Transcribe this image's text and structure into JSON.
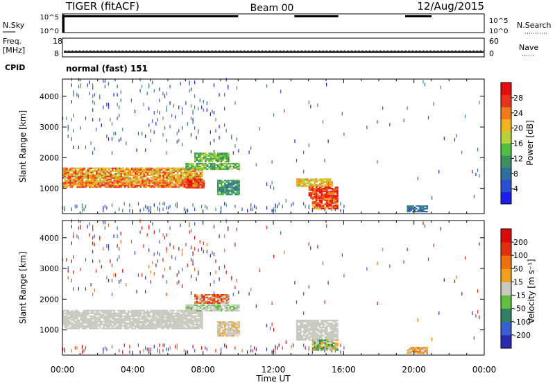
{
  "header": {
    "radar": "TIGER (fitACF)",
    "beam": "Beam 00",
    "date": "12/Aug/2015"
  },
  "status_rows": {
    "nsky_label": "N.Sky",
    "nsky_ticks": [
      "10^5",
      "10^0"
    ],
    "nsearch_label": "N.Search",
    "nsearch_ticks": [
      "10^5",
      "10^0"
    ],
    "freq_label": [
      "Freq.",
      "[MHz]"
    ],
    "freq_ticks": [
      "18",
      "8"
    ],
    "nave_label": "Nave",
    "nave_ticks": [
      "60",
      "0"
    ],
    "cpid_label": "CPID",
    "cpid_text": "normal (fast) 151"
  },
  "x_axis": {
    "label": "Time UT",
    "ticks": [
      "00:00",
      "04:00",
      "08:00",
      "12:00",
      "16:00",
      "20:00",
      "00:00"
    ]
  },
  "power_panel": {
    "y_label": "Slant Range [km]",
    "y_ticks": [
      "4000",
      "3000",
      "2000",
      "1000"
    ],
    "colorbar_label": "Power [dB]",
    "colorbar_ticks": [
      "28",
      "24",
      "20",
      "16",
      "12",
      "8",
      "4"
    ]
  },
  "velocity_panel": {
    "y_label": "Slant Range [km]",
    "y_ticks": [
      "4000",
      "3000",
      "2000",
      "1000"
    ],
    "colorbar_label": "Velocity [m s⁻¹]",
    "colorbar_ticks": [
      "200",
      "100",
      "50",
      "15",
      "-15",
      "-50",
      "-100",
      "-200"
    ]
  },
  "chart_data": {
    "type": "heatmap",
    "x_unit": "hours UT",
    "xlim": [
      0,
      24
    ],
    "ylim": [
      180,
      4560
    ],
    "power_colors": [
      "#1d1df0",
      "#2a4fd0",
      "#2f6fa0",
      "#3c8f5f",
      "#4fbf3f",
      "#b8d23a",
      "#f2b21c",
      "#f07a1a",
      "#e8321c",
      "#e60e0e"
    ],
    "velocity_colors": [
      "#2a2ab0",
      "#3a5fd0",
      "#2f7f5f",
      "#5fbf3f",
      "#c8c8c0",
      "#f2a01c",
      "#f07010",
      "#e03010",
      "#d80a0a"
    ],
    "power_regions": [
      {
        "t0": 0.0,
        "t1": 7.9,
        "r0": 1180,
        "r1": 1650,
        "levels": [
          5,
          6,
          7,
          8
        ]
      },
      {
        "t0": 0.0,
        "t1": 7.6,
        "r0": 1020,
        "r1": 1180,
        "levels": [
          6,
          7,
          8
        ]
      },
      {
        "t0": 6.9,
        "t1": 8.0,
        "r0": 1000,
        "r1": 1300,
        "levels": [
          7,
          8,
          9
        ]
      },
      {
        "t0": 7.0,
        "t1": 10.0,
        "r0": 1600,
        "r1": 1820,
        "levels": [
          3,
          4,
          5
        ]
      },
      {
        "t0": 7.5,
        "t1": 9.4,
        "r0": 1850,
        "r1": 2150,
        "levels": [
          3,
          4,
          5
        ]
      },
      {
        "t0": 8.8,
        "t1": 10.0,
        "r0": 780,
        "r1": 1250,
        "levels": [
          2,
          3,
          4
        ]
      },
      {
        "t0": 13.3,
        "t1": 15.3,
        "r0": 1050,
        "r1": 1300,
        "levels": [
          5,
          6,
          7
        ]
      },
      {
        "t0": 14.0,
        "t1": 15.6,
        "r0": 650,
        "r1": 1050,
        "levels": [
          7,
          8,
          9
        ]
      },
      {
        "t0": 14.2,
        "t1": 15.6,
        "r0": 320,
        "r1": 650,
        "levels": [
          6,
          7,
          8,
          9
        ]
      },
      {
        "t0": 19.6,
        "t1": 20.8,
        "r0": 220,
        "r1": 420,
        "levels": [
          1,
          2,
          3
        ]
      }
    ],
    "velocity_regions": [
      {
        "t0": 0.0,
        "t1": 7.9,
        "r0": 1020,
        "r1": 1650,
        "levels": [
          4,
          4,
          4,
          4
        ]
      },
      {
        "t0": 7.0,
        "t1": 10.0,
        "r0": 1600,
        "r1": 1820,
        "levels": [
          4,
          4,
          3
        ]
      },
      {
        "t0": 8.8,
        "t1": 10.0,
        "r0": 780,
        "r1": 1250,
        "levels": [
          4,
          4,
          5
        ]
      },
      {
        "t0": 7.5,
        "t1": 9.4,
        "r0": 1850,
        "r1": 2150,
        "levels": [
          4,
          6,
          7
        ]
      },
      {
        "t0": 13.3,
        "t1": 15.6,
        "r0": 650,
        "r1": 1300,
        "levels": [
          4,
          4,
          4
        ]
      },
      {
        "t0": 14.2,
        "t1": 15.6,
        "r0": 320,
        "r1": 650,
        "levels": [
          4,
          2,
          3,
          5
        ]
      },
      {
        "t0": 19.6,
        "t1": 20.8,
        "r0": 220,
        "r1": 420,
        "levels": [
          5,
          4,
          6
        ]
      }
    ],
    "power_scatter_levels": [
      0,
      1,
      2,
      3
    ],
    "velocity_scatter_levels": [
      0,
      1,
      6,
      7,
      8
    ],
    "scatter_regions": [
      {
        "t0": 0.0,
        "t1": 10.0,
        "r0": 2100,
        "r1": 4500,
        "density": 0.03
      },
      {
        "t0": 0.0,
        "t1": 10.0,
        "r0": 220,
        "r1": 480,
        "density": 0.1
      },
      {
        "t0": 10.0,
        "t1": 16.0,
        "r0": 220,
        "r1": 480,
        "density": 0.06
      },
      {
        "t0": 10.0,
        "t1": 24.0,
        "r0": 500,
        "r1": 4500,
        "density": 0.004
      }
    ]
  }
}
